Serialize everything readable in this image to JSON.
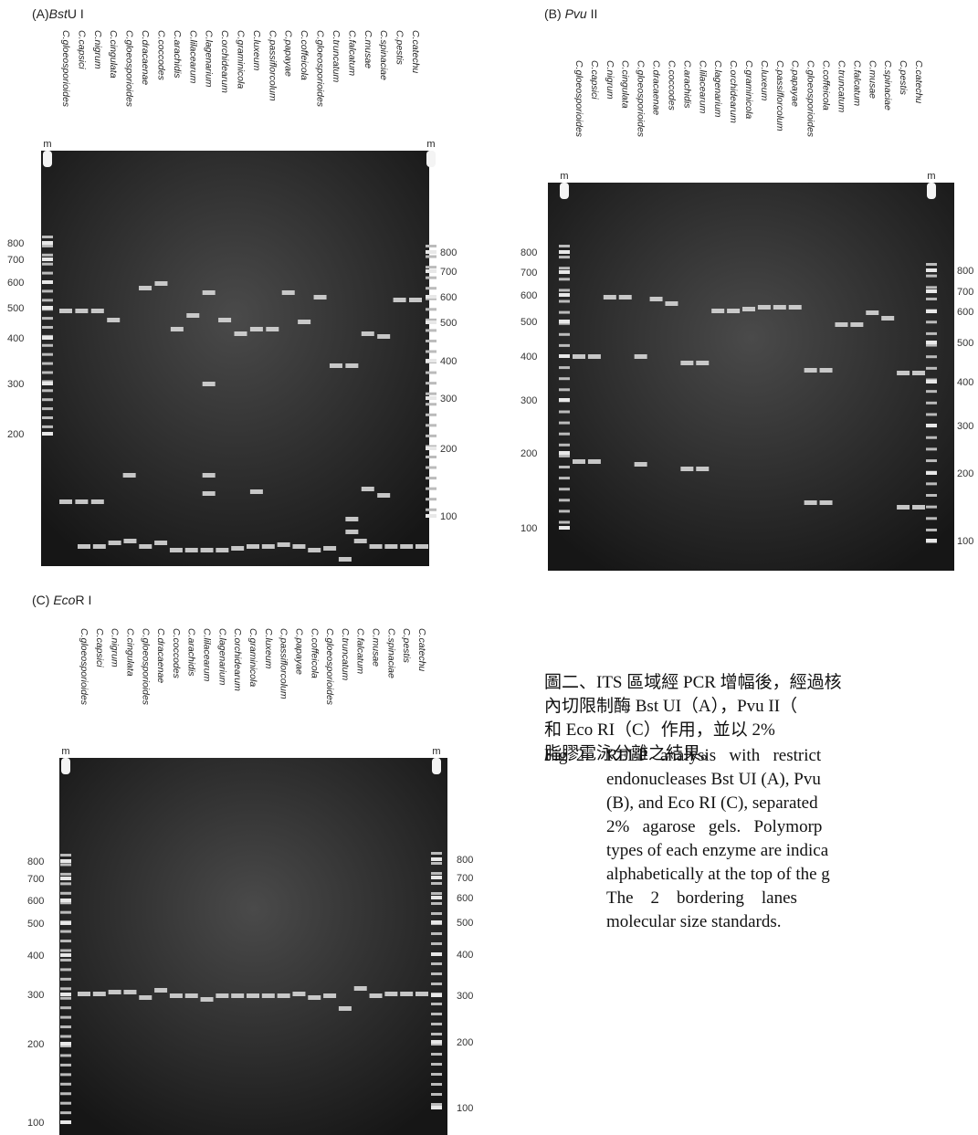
{
  "panels": [
    {
      "title": [
        "(A)",
        "Bst",
        "U I"
      ],
      "marker": "m",
      "lanes": [
        "C.gloeosporioides",
        "C.capsici",
        "C.nigrum",
        "C.cingulata",
        "C.gloeosporioides",
        "C.dracaenae",
        "C.coccodes",
        "C.arachidis",
        "C.lilacearum",
        "C.lagenarium",
        "C.orchidearum",
        "C.graminicola",
        "C.luxeum",
        "C.passiflorcolum",
        "C.papayae",
        "C.coffeicola",
        "C.gloeosporioides",
        "C.truncatum",
        "C.falcatum",
        "C.musae",
        "C.spinaciae",
        "C.pestis",
        "C.catechu"
      ],
      "left_sizes": [
        800,
        700,
        600,
        500,
        400,
        300,
        200
      ],
      "right_sizes": [
        800,
        700,
        600,
        500,
        400,
        300,
        200,
        100
      ]
    },
    {
      "title": [
        "(B) ",
        "Pvu",
        " II"
      ],
      "marker": "m",
      "lanes": [
        "C.gloeosporioides",
        "C.capsici",
        "C.nigrum",
        "C.cingulata",
        "C.gloeosporioides",
        "C.dracaenae",
        "C.coccodes",
        "C.arachidis",
        "C.lilacearum",
        "C.lagenarium",
        "C.orchidearum",
        "C.graminicola",
        "C.luxeum",
        "C.passiflorcolum",
        "C.papayae",
        "C.gloeosporioides",
        "C.coffeicola",
        "C.truncatum",
        "C.falcatum",
        "C.musae",
        "C.spinaciae",
        "C.pestis",
        "C.catechu"
      ],
      "left_sizes": [
        800,
        700,
        600,
        500,
        400,
        300,
        200,
        100
      ],
      "right_sizes": [
        800,
        700,
        600,
        500,
        400,
        300,
        200,
        100
      ]
    },
    {
      "title": [
        "(C) ",
        "Eco",
        "R I"
      ],
      "marker": "m",
      "lanes": [
        "C.gloeosporioides",
        "C.capsici",
        "C.nigrum",
        "C.cingulata",
        "C.gloeosporioides",
        "C.dracaenae",
        "C.coccodes",
        "C.arachidis",
        "C.lilacearum",
        "C.lagenarium",
        "C.orchidearum",
        "C.graminicola",
        "C.luxeum",
        "C.passiflorcolum",
        "C.papayae",
        "C.coffeicola",
        "C.gloeosporioides",
        "C.truncatum",
        "C.falcatum",
        "C.musae",
        "C.spinaciae",
        "C.pestis",
        "C.catechu"
      ],
      "left_sizes": [
        800,
        700,
        600,
        500,
        400,
        300,
        200,
        100
      ],
      "right_sizes": [
        800,
        700,
        600,
        500,
        400,
        300,
        200,
        100
      ]
    }
  ],
  "caption": {
    "zh": [
      "圖二、ITS 區域經 PCR 增幅後，經過核",
      "內切限制酶 Bst UI（A），Pvu II（",
      "和 Eco RI（C）作用，並以 2%",
      "脂膠電泳分離之結果。"
    ],
    "label": "Fig. 2.",
    "en": [
      "RFLP   analysis   with   restrict",
      "endonucleases Bst UI (A), Pvu",
      "(B), and Eco RI (C), separated",
      "2%   agarose   gels.   Polymorp",
      "types of each enzyme are indica",
      "alphabetically at the top of the g",
      "The    2    bordering    lanes",
      "molecular size standards."
    ]
  }
}
